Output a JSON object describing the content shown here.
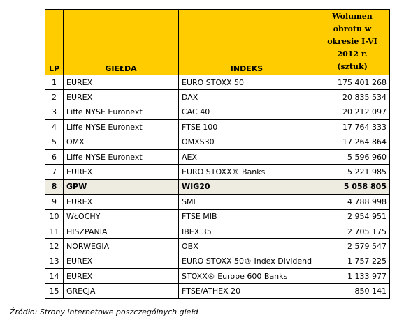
{
  "table": {
    "header": {
      "lp": "LP",
      "exchange": "GIEŁDA",
      "index": "INDEKS",
      "volume": [
        "Wolumen",
        "obrotu w",
        "okresie I-VI",
        "2012 r.",
        "(sztuk)"
      ]
    },
    "rows": [
      [
        "1",
        "EUREX",
        "EURO STOXX 50",
        "175 401 268"
      ],
      [
        "2",
        "EUREX",
        "DAX",
        "20 835 534"
      ],
      [
        "3",
        "Liffe NYSE Euronext",
        "CAC 40",
        "20 212 097"
      ],
      [
        "4",
        "Liffe NYSE Euronext",
        "FTSE 100",
        "17 764 333"
      ],
      [
        "5",
        "OMX",
        "OMXS30",
        "17 264 864"
      ],
      [
        "6",
        "Liffe NYSE Euronext",
        "AEX",
        "5 596 960"
      ],
      [
        "7",
        "EUREX",
        "EURO STOXX® Banks",
        "5 221 985"
      ],
      [
        "8",
        "GPW",
        "WIG20",
        "5 058 805"
      ],
      [
        "9",
        "EUREX",
        "SMI",
        "4 788 998"
      ],
      [
        "10",
        "WŁOCHY",
        "FTSE MIB",
        "2 954 951"
      ],
      [
        "11",
        "HISZPANIA",
        "IBEX 35",
        "2 705 175"
      ],
      [
        "12",
        "NORWEGIA",
        "OBX",
        "2 579 547"
      ],
      [
        "13",
        "EUREX",
        "EURO STOXX 50® Index Dividend",
        "1 757 225"
      ],
      [
        "14",
        "EUREX",
        "STOXX® Europe 600 Banks",
        "1 133 977"
      ],
      [
        "15",
        "GRECJA",
        "FTSE/ATHEX 20",
        "850 141"
      ]
    ],
    "highlight_row": 7
  },
  "source": "Źródło: Strony internetowe poszczególnych giełd"
}
